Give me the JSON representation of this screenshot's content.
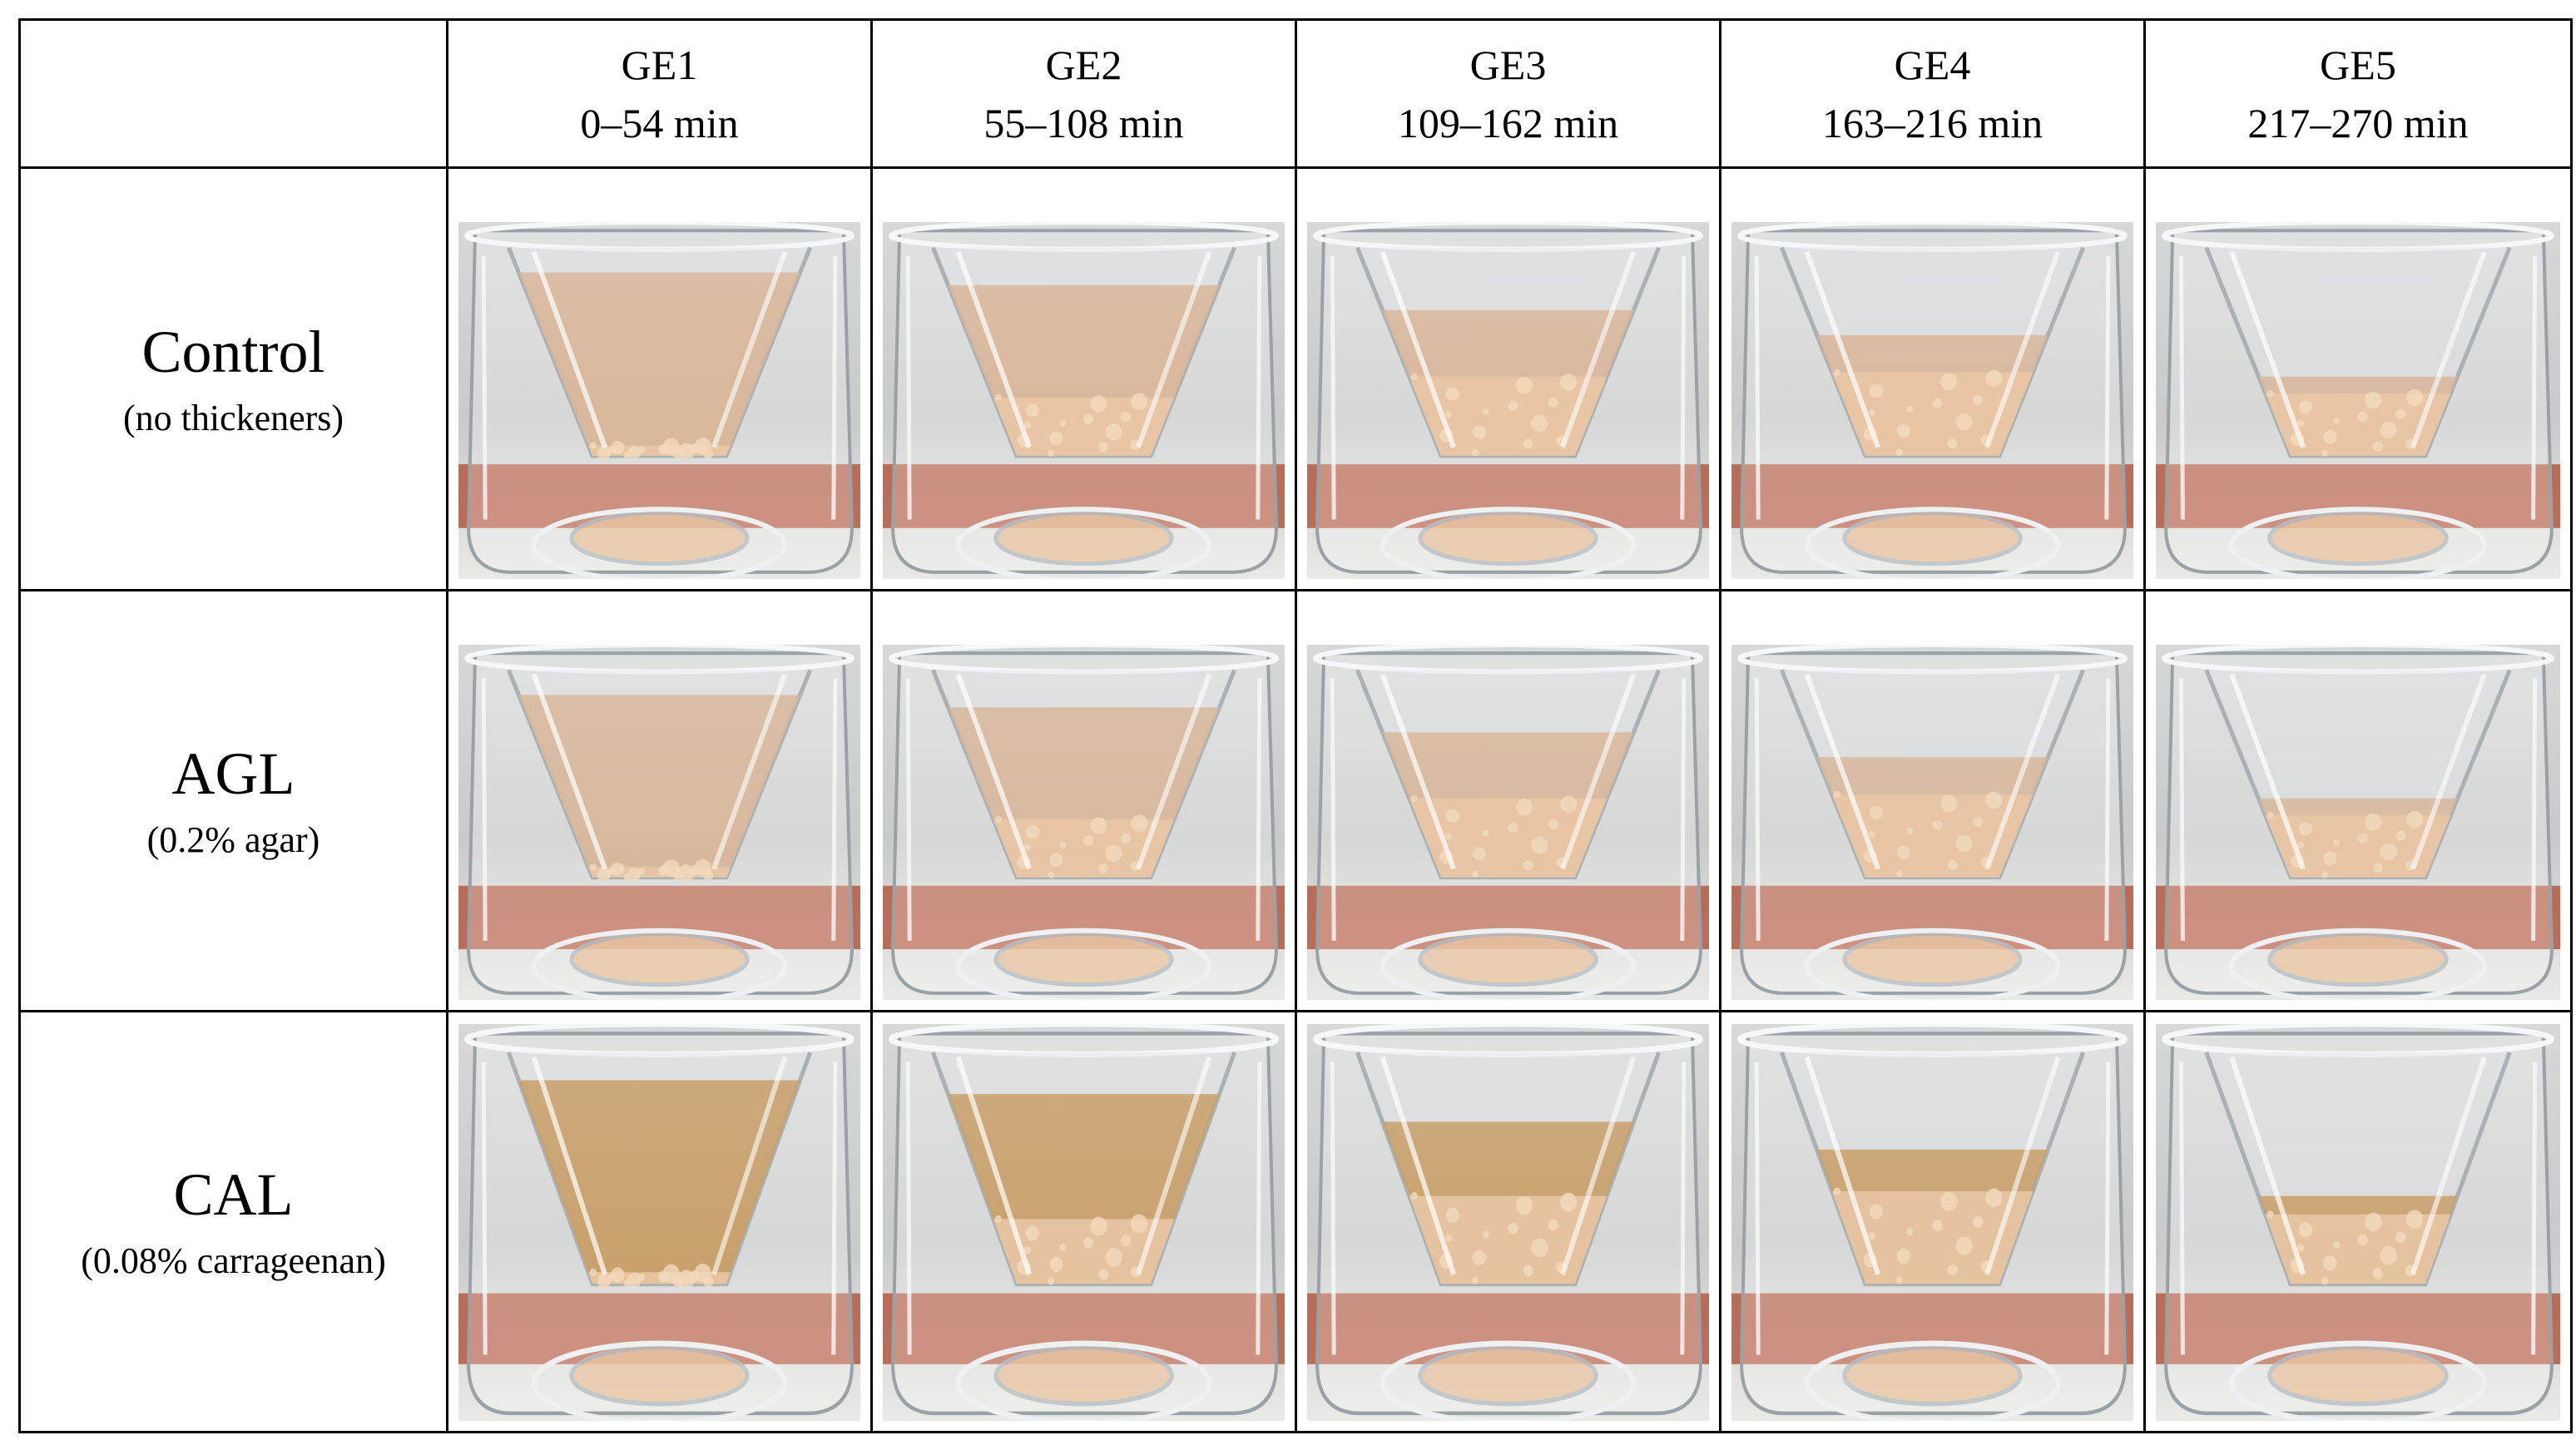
{
  "table": {
    "corner": "",
    "columns": [
      {
        "id": "GE1",
        "label": "GE1",
        "range": "0–54 min"
      },
      {
        "id": "GE2",
        "label": "GE2",
        "range": "55–108 min"
      },
      {
        "id": "GE3",
        "label": "GE3",
        "range": "109–162 min"
      },
      {
        "id": "GE4",
        "label": "GE4",
        "range": "163–216 min"
      },
      {
        "id": "GE5",
        "label": "GE5",
        "range": "217–270 min"
      }
    ],
    "rows": [
      {
        "id": "control",
        "label": "Control",
        "sublabel": "(no thickeners)"
      },
      {
        "id": "agl",
        "label": "AGL",
        "sublabel": "(0.2% agar)"
      },
      {
        "id": "cal",
        "label": "CAL",
        "sublabel": "(0.08% carrageenan)"
      }
    ]
  },
  "colors": {
    "liquid_control": "#d9b79a",
    "liquid_agl": "#d8b89c",
    "liquid_cal": "#c9a06a",
    "sediment": "#e9c7a5",
    "table_bg": "#b5593f",
    "glass": "#dfe3e5"
  }
}
